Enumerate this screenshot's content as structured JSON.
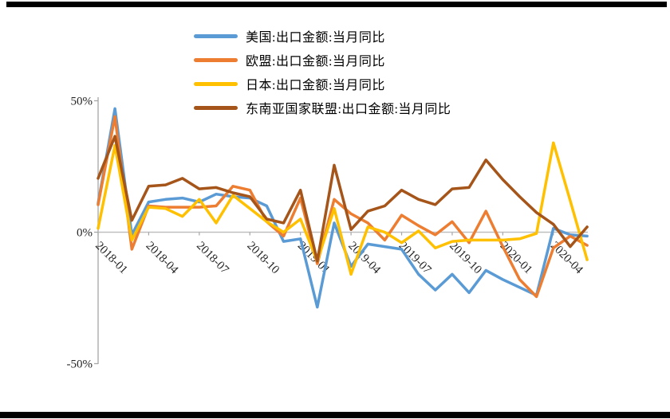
{
  "page": {
    "background": "#ffffff",
    "top_bar_color": "#000000",
    "bottom_bar_color": "#000000"
  },
  "axis_colors": {
    "axis_line": "#a6a6a6",
    "zero_line": "#bfbfbf",
    "tick_text": "#262626"
  },
  "chart_data": {
    "type": "line",
    "title": "",
    "xlabel": "",
    "ylabel": "",
    "ylim": [
      -50,
      50
    ],
    "grid": "zero-line-only",
    "legend_position": "top-center",
    "x": [
      "2018-01",
      "2018-02",
      "2018-03",
      "2018-04",
      "2018-05",
      "2018-06",
      "2018-07",
      "2018-08",
      "2018-09",
      "2018-10",
      "2018-11",
      "2018-12",
      "2019-01",
      "2019-02",
      "2019-03",
      "2019-04",
      "2019-05",
      "2019-06",
      "2019-07",
      "2019-08",
      "2019-09",
      "2019-10",
      "2019-11",
      "2019-12",
      "2020-01",
      "2020-02",
      "2020-03",
      "2020-04",
      "2020-05",
      "2020-06"
    ],
    "x_tick_labels": [
      "2018-01",
      "2018-04",
      "2018-07",
      "2018-10",
      "2019-01",
      "2019-04",
      "2019-07",
      "2019-10",
      "2020-01",
      "2020-04"
    ],
    "y_ticks": [
      {
        "label": "50%",
        "value": 50
      },
      {
        "label": "0%",
        "value": 0
      },
      {
        "label": "-50%",
        "value": -50
      }
    ],
    "series": [
      {
        "key": "us",
        "name": "美国:出口金额:当月同比",
        "color": "#5B9BD5",
        "values": [
          11,
          47,
          -1,
          11.5,
          12.5,
          13,
          11.5,
          14.5,
          13.5,
          13,
          10,
          -3.5,
          -2.5,
          -28.5,
          3.5,
          -13,
          -4.5,
          -5.5,
          -6.5,
          -16,
          -22,
          -16,
          -23,
          -14.5,
          -18,
          -21,
          -24,
          1.5,
          -1,
          -1.5
        ]
      },
      {
        "key": "eu",
        "name": "欧盟:出口金额:当月同比",
        "color": "#ED7D31",
        "values": [
          10.5,
          44,
          -6.5,
          10,
          9.5,
          9.5,
          9.5,
          10,
          17.5,
          16,
          4,
          -1.5,
          13,
          -12,
          12.5,
          7,
          3.5,
          -3,
          6.5,
          2.5,
          -1,
          4,
          -4,
          8,
          -5.5,
          -18,
          -24.5,
          -6,
          -1.5,
          -5
        ]
      },
      {
        "key": "japan",
        "name": "日本:出口金额:当月同比",
        "color": "#FFC000",
        "values": [
          1.5,
          33,
          -3,
          9.5,
          9,
          6,
          12.5,
          3.5,
          14,
          9,
          4,
          0,
          5,
          -11,
          9,
          -16,
          2,
          0,
          -4,
          0.5,
          -6,
          -3.5,
          -3,
          -3,
          -3,
          -2.5,
          -0.5,
          34,
          12,
          -10.5
        ]
      },
      {
        "key": "asean",
        "name": "东南亚国家联盟:出口金额:当月同比",
        "color": "#A55519",
        "values": [
          20.5,
          36.5,
          4.5,
          17.5,
          18,
          20.5,
          16.5,
          17,
          15,
          13.5,
          5,
          3.5,
          16,
          -11,
          25.5,
          1,
          8,
          10,
          16,
          12.5,
          10.5,
          16.5,
          17,
          27.5,
          20,
          13.5,
          7.5,
          3,
          -5.5,
          2
        ]
      }
    ]
  }
}
